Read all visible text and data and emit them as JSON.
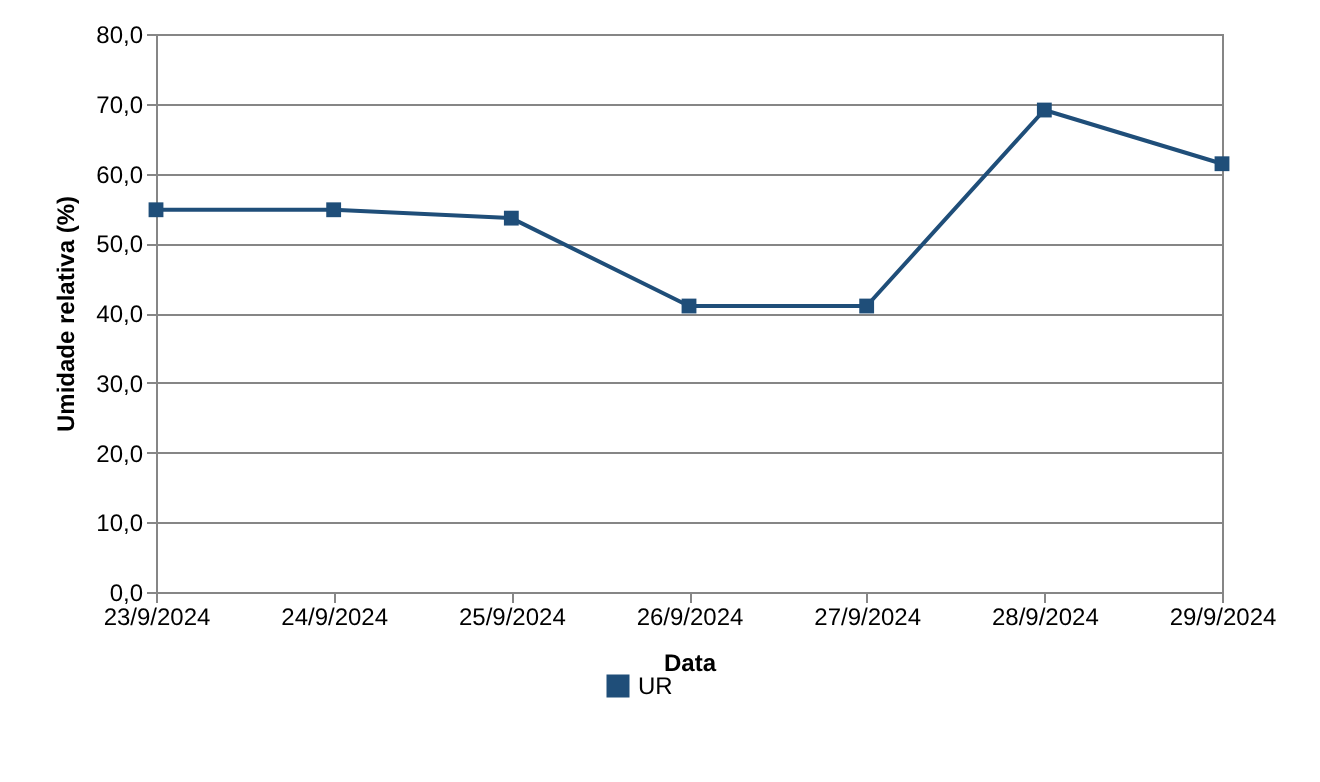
{
  "chart_data": {
    "type": "line",
    "xlabel": "Data",
    "ylabel": "Umidade relativa (%)",
    "categories": [
      "23/9/2024",
      "24/9/2024",
      "25/9/2024",
      "26/9/2024",
      "27/9/2024",
      "28/9/2024",
      "29/9/2024"
    ],
    "series": [
      {
        "name": "UR",
        "color": "#1f4e79",
        "values": [
          54.8,
          54.8,
          53.6,
          41.0,
          41.0,
          69.1,
          61.4
        ]
      }
    ],
    "ylim": [
      0,
      80
    ],
    "yticks": [
      {
        "value": 0,
        "label": "0,0"
      },
      {
        "value": 10,
        "label": "10,0"
      },
      {
        "value": 20,
        "label": "20,0"
      },
      {
        "value": 30,
        "label": "30,0"
      },
      {
        "value": 40,
        "label": "40,0"
      },
      {
        "value": 50,
        "label": "50,0"
      },
      {
        "value": 60,
        "label": "60,0"
      },
      {
        "value": 70,
        "label": "70,0"
      },
      {
        "value": 80,
        "label": "80,0"
      }
    ],
    "grid": "y",
    "legend": "bottom",
    "marker": "square",
    "line_style": "solid"
  }
}
